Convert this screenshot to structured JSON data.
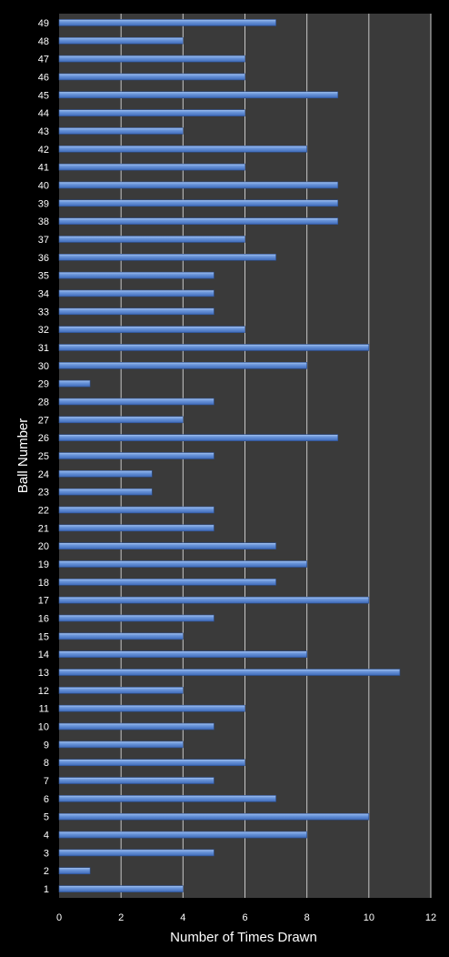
{
  "chart_data": {
    "type": "bar",
    "orientation": "horizontal",
    "xlabel": "Number of Times Drawn",
    "ylabel": "Ball Number",
    "xlim": [
      0,
      12
    ],
    "xticks": [
      0,
      2,
      4,
      6,
      8,
      10,
      12
    ],
    "grid": "vertical",
    "legend": "none",
    "colors": {
      "background": "#000000",
      "plot_area": "#3a3a3a",
      "bar": "#4f7fd2",
      "bar_highlight": "#9dbdf0",
      "gridline": "#c8c8c8",
      "text": "#ffffff"
    },
    "categories": [
      "1",
      "2",
      "3",
      "4",
      "5",
      "6",
      "7",
      "8",
      "9",
      "10",
      "11",
      "12",
      "13",
      "14",
      "15",
      "16",
      "17",
      "18",
      "19",
      "20",
      "21",
      "22",
      "23",
      "24",
      "25",
      "26",
      "27",
      "28",
      "29",
      "30",
      "31",
      "32",
      "33",
      "34",
      "35",
      "36",
      "37",
      "38",
      "39",
      "40",
      "41",
      "42",
      "43",
      "44",
      "45",
      "46",
      "47",
      "48",
      "49"
    ],
    "values": [
      4,
      1,
      5,
      8,
      10,
      7,
      5,
      6,
      4,
      5,
      6,
      4,
      11,
      8,
      4,
      5,
      10,
      7,
      8,
      7,
      5,
      5,
      3,
      3,
      5,
      9,
      4,
      5,
      1,
      8,
      10,
      6,
      5,
      5,
      5,
      7,
      6,
      9,
      9,
      9,
      6,
      8,
      4,
      6,
      9,
      6,
      6,
      4,
      7
    ]
  }
}
